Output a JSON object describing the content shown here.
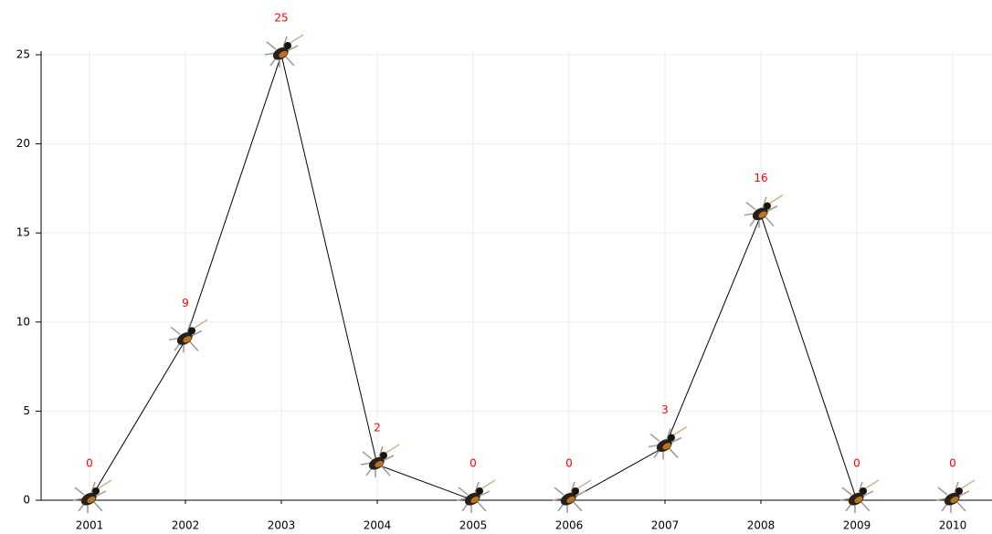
{
  "chart_data": {
    "type": "line",
    "categories": [
      "2001",
      "2002",
      "2003",
      "2004",
      "2005",
      "2006",
      "2007",
      "2008",
      "2009",
      "2010"
    ],
    "values": [
      0,
      9,
      25,
      2,
      0,
      0,
      3,
      16,
      0,
      0
    ],
    "color": "#000000",
    "label_color": "#ff0000",
    "ylim": [
      0,
      25
    ],
    "yticks": [
      0,
      5,
      10,
      15,
      20,
      25
    ],
    "grid": true
  }
}
